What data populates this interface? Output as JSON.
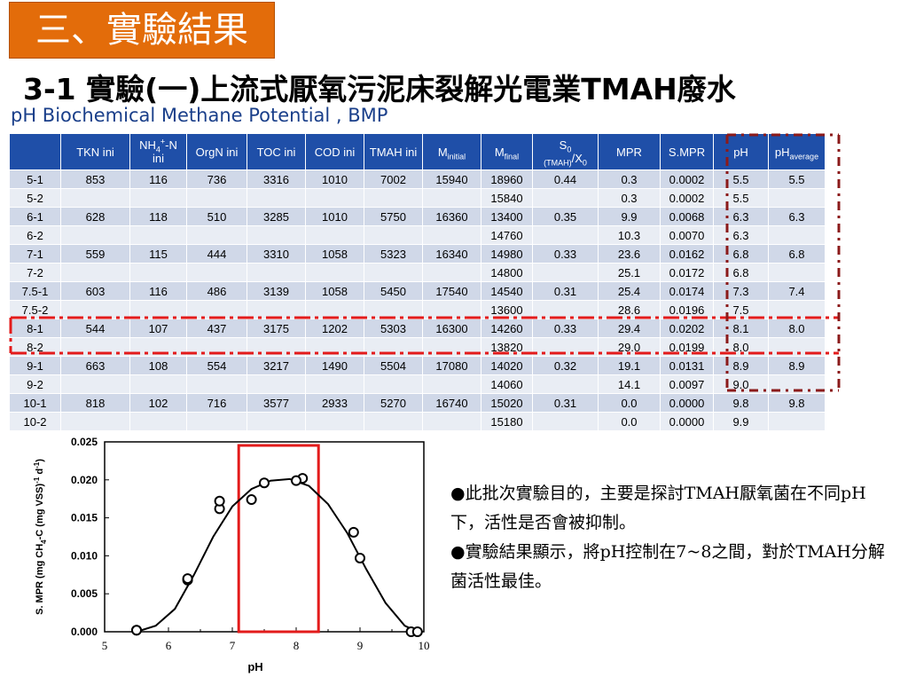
{
  "header": {
    "section_badge": "三、實驗結果",
    "title": "3-1 實驗(一)上流式厭氧污泥床裂解光電業TMAH廢水",
    "subtitle": "pH Biochemical Methane Potential , BMP"
  },
  "table": {
    "headers": [
      "",
      "TKN ini",
      "NH4+-N ini",
      "OrgN ini",
      "TOC ini",
      "COD ini",
      "TMAH ini",
      "Minitial",
      "Mfinal",
      "S0(TMAH)/X0",
      "MPR",
      "S.MPR",
      "pH",
      "pHaverage"
    ],
    "header_parts": {
      "nh4_main": "NH",
      "nh4_sub": "4",
      "nh4_sup": "+",
      "nh4_rest": "-N",
      "nh4_line2": "ini",
      "minitial_main": "M",
      "minitial_sub": "initial",
      "mfinal_main": "M",
      "mfinal_sub": "final",
      "s0_main": "S",
      "s0_sub": "0",
      "s0_sub2": "(TMAH)",
      "s0_rest": "/X",
      "s0_sub3": "0",
      "phavg_main": "pH",
      "phavg_sub": "average"
    },
    "rows": [
      [
        "5-1",
        "853",
        "116",
        "736",
        "3316",
        "1010",
        "7002",
        "15940",
        "18960",
        "0.44",
        "0.3",
        "0.0002",
        "5.5",
        "5.5"
      ],
      [
        "5-2",
        "",
        "",
        "",
        "",
        "",
        "",
        "",
        "15840",
        "",
        "0.3",
        "0.0002",
        "5.5",
        ""
      ],
      [
        "6-1",
        "628",
        "118",
        "510",
        "3285",
        "1010",
        "5750",
        "16360",
        "13400",
        "0.35",
        "9.9",
        "0.0068",
        "6.3",
        "6.3"
      ],
      [
        "6-2",
        "",
        "",
        "",
        "",
        "",
        "",
        "",
        "14760",
        "",
        "10.3",
        "0.0070",
        "6.3",
        ""
      ],
      [
        "7-1",
        "559",
        "115",
        "444",
        "3310",
        "1058",
        "5323",
        "16340",
        "14980",
        "0.33",
        "23.6",
        "0.0162",
        "6.8",
        "6.8"
      ],
      [
        "7-2",
        "",
        "",
        "",
        "",
        "",
        "",
        "",
        "14800",
        "",
        "25.1",
        "0.0172",
        "6.8",
        ""
      ],
      [
        "7.5-1",
        "603",
        "116",
        "486",
        "3139",
        "1058",
        "5450",
        "17540",
        "14540",
        "0.31",
        "25.4",
        "0.0174",
        "7.3",
        "7.4"
      ],
      [
        "7.5-2",
        "",
        "",
        "",
        "",
        "",
        "",
        "",
        "13600",
        "",
        "28.6",
        "0.0196",
        "7.5",
        ""
      ],
      [
        "8-1",
        "544",
        "107",
        "437",
        "3175",
        "1202",
        "5303",
        "16300",
        "14260",
        "0.33",
        "29.4",
        "0.0202",
        "8.1",
        "8.0"
      ],
      [
        "8-2",
        "",
        "",
        "",
        "",
        "",
        "",
        "",
        "13820",
        "",
        "29.0",
        "0.0199",
        "8.0",
        ""
      ],
      [
        "9-1",
        "663",
        "108",
        "554",
        "3217",
        "1490",
        "5504",
        "17080",
        "14020",
        "0.32",
        "19.1",
        "0.0131",
        "8.9",
        "8.9"
      ],
      [
        "9-2",
        "",
        "",
        "",
        "",
        "",
        "",
        "",
        "14060",
        "",
        "14.1",
        "0.0097",
        "9.0",
        ""
      ],
      [
        "10-1",
        "818",
        "102",
        "716",
        "3577",
        "2933",
        "5270",
        "16740",
        "15020",
        "0.31",
        "0.0",
        "0.0000",
        "9.8",
        "9.8"
      ],
      [
        "10-2",
        "",
        "",
        "",
        "",
        "",
        "",
        "",
        "15180",
        "",
        "0.0",
        "0.0000",
        "9.9",
        ""
      ]
    ]
  },
  "chart_data": {
    "type": "scatter",
    "xlabel": "pH",
    "ylabel": "S. MPR (mg CH4-C (mg VSS)-1 d-1)",
    "ylabel_parts": {
      "a": "S. MPR (mg CH",
      "a_sub": "4",
      "b": "-C (mg VSS)",
      "b_sup1": "-1",
      "c": " d",
      "c_sup": "-1",
      "d": ")"
    },
    "xlim": [
      5,
      10
    ],
    "ylim": [
      0,
      0.025
    ],
    "xticks": [
      "5",
      "6",
      "7",
      "8",
      "9",
      "10"
    ],
    "yticks": [
      "0.000",
      "0.005",
      "0.010",
      "0.015",
      "0.020",
      "0.025"
    ],
    "points": [
      {
        "x": 5.5,
        "y": 0.0002
      },
      {
        "x": 5.5,
        "y": 0.0002
      },
      {
        "x": 6.3,
        "y": 0.0068
      },
      {
        "x": 6.3,
        "y": 0.007
      },
      {
        "x": 6.8,
        "y": 0.0162
      },
      {
        "x": 6.8,
        "y": 0.0172
      },
      {
        "x": 7.3,
        "y": 0.0174
      },
      {
        "x": 7.5,
        "y": 0.0196
      },
      {
        "x": 8.1,
        "y": 0.0202
      },
      {
        "x": 8.0,
        "y": 0.0199
      },
      {
        "x": 8.9,
        "y": 0.0131
      },
      {
        "x": 9.0,
        "y": 0.0097
      },
      {
        "x": 9.8,
        "y": 0.0
      },
      {
        "x": 9.9,
        "y": 0.0
      }
    ],
    "fit_curve": [
      {
        "x": 5.5,
        "y": 0.0
      },
      {
        "x": 5.8,
        "y": 0.0008
      },
      {
        "x": 6.1,
        "y": 0.003
      },
      {
        "x": 6.4,
        "y": 0.0075
      },
      {
        "x": 6.7,
        "y": 0.0125
      },
      {
        "x": 7.0,
        "y": 0.0165
      },
      {
        "x": 7.3,
        "y": 0.0188
      },
      {
        "x": 7.6,
        "y": 0.0199
      },
      {
        "x": 7.9,
        "y": 0.0201
      },
      {
        "x": 8.2,
        "y": 0.0192
      },
      {
        "x": 8.5,
        "y": 0.0168
      },
      {
        "x": 8.8,
        "y": 0.013
      },
      {
        "x": 9.1,
        "y": 0.0082
      },
      {
        "x": 9.4,
        "y": 0.0038
      },
      {
        "x": 9.7,
        "y": 0.0008
      },
      {
        "x": 9.9,
        "y": 0.0
      }
    ],
    "highlight_range": {
      "x": [
        7.1,
        8.35
      ],
      "y": [
        0,
        0.025
      ]
    },
    "highlight_color": "#e31b1b",
    "point_color": "#000000"
  },
  "bullets": [
    "●此批次實驗目的，主要是探討TMAH厭氧菌在不同pH下，活性是否會被抑制。",
    "●實驗結果顯示，將pH控制在7~8之間，對於TMAH分解菌活性最佳。"
  ],
  "annotation_colors": {
    "dashed_red": "#e31b1b",
    "dashed_dark": "#8b1a1a"
  }
}
